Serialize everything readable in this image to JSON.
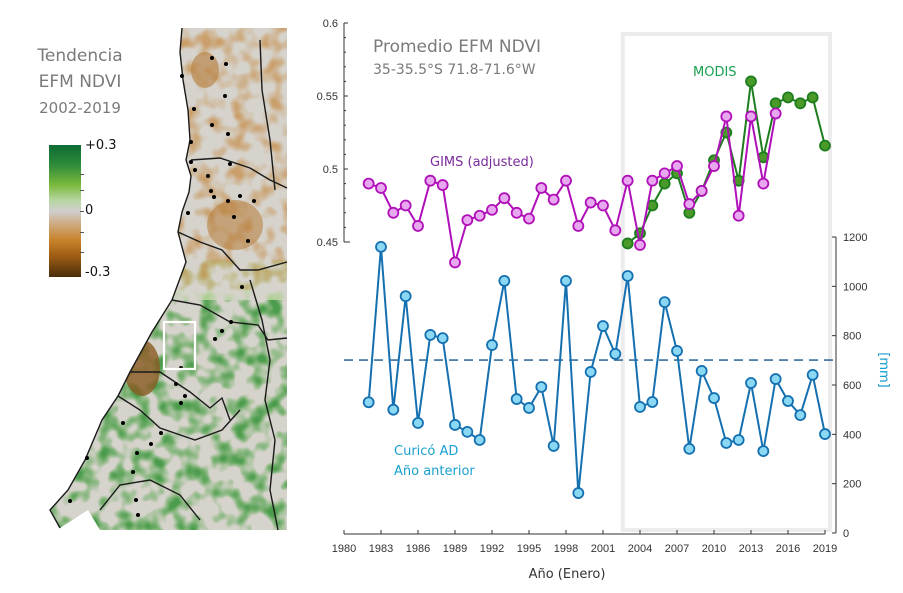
{
  "map": {
    "title_lines": [
      "Tendencia",
      "EFM NDVI",
      "2002-2019"
    ],
    "colorbar": {
      "max_label": "+0.3",
      "mid_label": "0",
      "min_label": "-0.3",
      "colors": [
        "#0d6b35",
        "#79b93c",
        "#cfcfcf",
        "#c9832a",
        "#4a2e0a"
      ]
    }
  },
  "chart_data": {
    "type": "line",
    "title": "Promedio EFM NDVI",
    "subtitle": "35-35.5°S 71.8-71.6°W",
    "xlabel": "Año (Enero)",
    "ylabel_left": "",
    "ylabel_right": "[mm]",
    "xlim": [
      1980,
      2019
    ],
    "x_ticks": [
      1980,
      1983,
      1986,
      1989,
      1992,
      1995,
      1998,
      2001,
      2004,
      2007,
      2010,
      2013,
      2016,
      2019
    ],
    "ylim_left": [
      0.45,
      0.6
    ],
    "y_ticks_left": [
      "0.45",
      "0.5",
      "0.55",
      "0.6"
    ],
    "ylim_right": [
      0,
      1200
    ],
    "y_ticks_right": [
      "0",
      "200",
      "400",
      "600",
      "800",
      "1000",
      "1200"
    ],
    "highlight_period": [
      2002.6,
      2019.4
    ],
    "mean_line_mm": 701,
    "series": [
      {
        "name": "GIMS (adjusted)",
        "axis": "left",
        "color": "#b010b8",
        "marker_fill": "#e8a8f0",
        "x": [
          1982,
          1983,
          1984,
          1985,
          1986,
          1987,
          1988,
          1989,
          1990,
          1991,
          1992,
          1993,
          1994,
          1995,
          1996,
          1997,
          1998,
          1999,
          2000,
          2001,
          2002,
          2003,
          2004,
          2005,
          2006,
          2007,
          2008,
          2009,
          2010,
          2011,
          2012,
          2013,
          2014,
          2015
        ],
        "values": [
          0.49,
          0.487,
          0.47,
          0.475,
          0.461,
          0.492,
          0.489,
          0.436,
          0.465,
          0.468,
          0.472,
          0.48,
          0.47,
          0.466,
          0.487,
          0.479,
          0.492,
          0.461,
          0.477,
          0.475,
          0.458,
          0.492,
          0.448,
          0.492,
          0.497,
          0.502,
          0.476,
          0.485,
          0.502,
          0.536,
          0.468,
          0.536,
          0.49,
          0.538
        ]
      },
      {
        "name": "MODIS",
        "axis": "left",
        "color": "#1e7d1e",
        "marker_fill": "#4a9a2a",
        "x": [
          2003,
          2004,
          2005,
          2006,
          2007,
          2008,
          2009,
          2010,
          2011,
          2012,
          2013,
          2014,
          2015,
          2016,
          2017,
          2018,
          2019
        ],
        "values": [
          0.449,
          0.456,
          0.475,
          0.49,
          0.497,
          0.47,
          0.485,
          0.506,
          0.525,
          0.492,
          0.56,
          0.508,
          0.545,
          0.549,
          0.545,
          0.549,
          0.516
        ]
      },
      {
        "name": "Curicó AD Año anterior",
        "axis": "right",
        "color": "#1570b0",
        "marker_fill": "#8ad8f4",
        "x": [
          1982,
          1983,
          1984,
          1985,
          1986,
          1987,
          1988,
          1989,
          1990,
          1991,
          1992,
          1993,
          1994,
          1995,
          1996,
          1997,
          1998,
          1999,
          2000,
          2001,
          2002,
          2003,
          2004,
          2005,
          2006,
          2007,
          2008,
          2009,
          2010,
          2011,
          2012,
          2013,
          2014,
          2015,
          2016,
          2017,
          2018,
          2019
        ],
        "values": [
          530,
          1160,
          500,
          960,
          446,
          803,
          790,
          438,
          410,
          377,
          762,
          1022,
          543,
          507,
          592,
          353,
          1022,
          162,
          653,
          839,
          726,
          1042,
          511,
          531,
          936,
          738,
          341,
          657,
          547,
          365,
          377,
          608,
          332,
          624,
          535,
          478,
          641,
          401
        ]
      }
    ],
    "annotations": {
      "gims_label": "GIMS (adjusted)",
      "modis_label": "MODIS",
      "rain_label_line1": "Curicó AD",
      "rain_label_line2": "Año anterior"
    },
    "colors": {
      "gims_label": "#7a2a9a",
      "modis_label": "#1aa050",
      "rain_label": "#1aa0d0",
      "mm_label": "#1aa0d0",
      "highlight_box": "#ececec",
      "mean_line": "#3a6fa0"
    }
  }
}
